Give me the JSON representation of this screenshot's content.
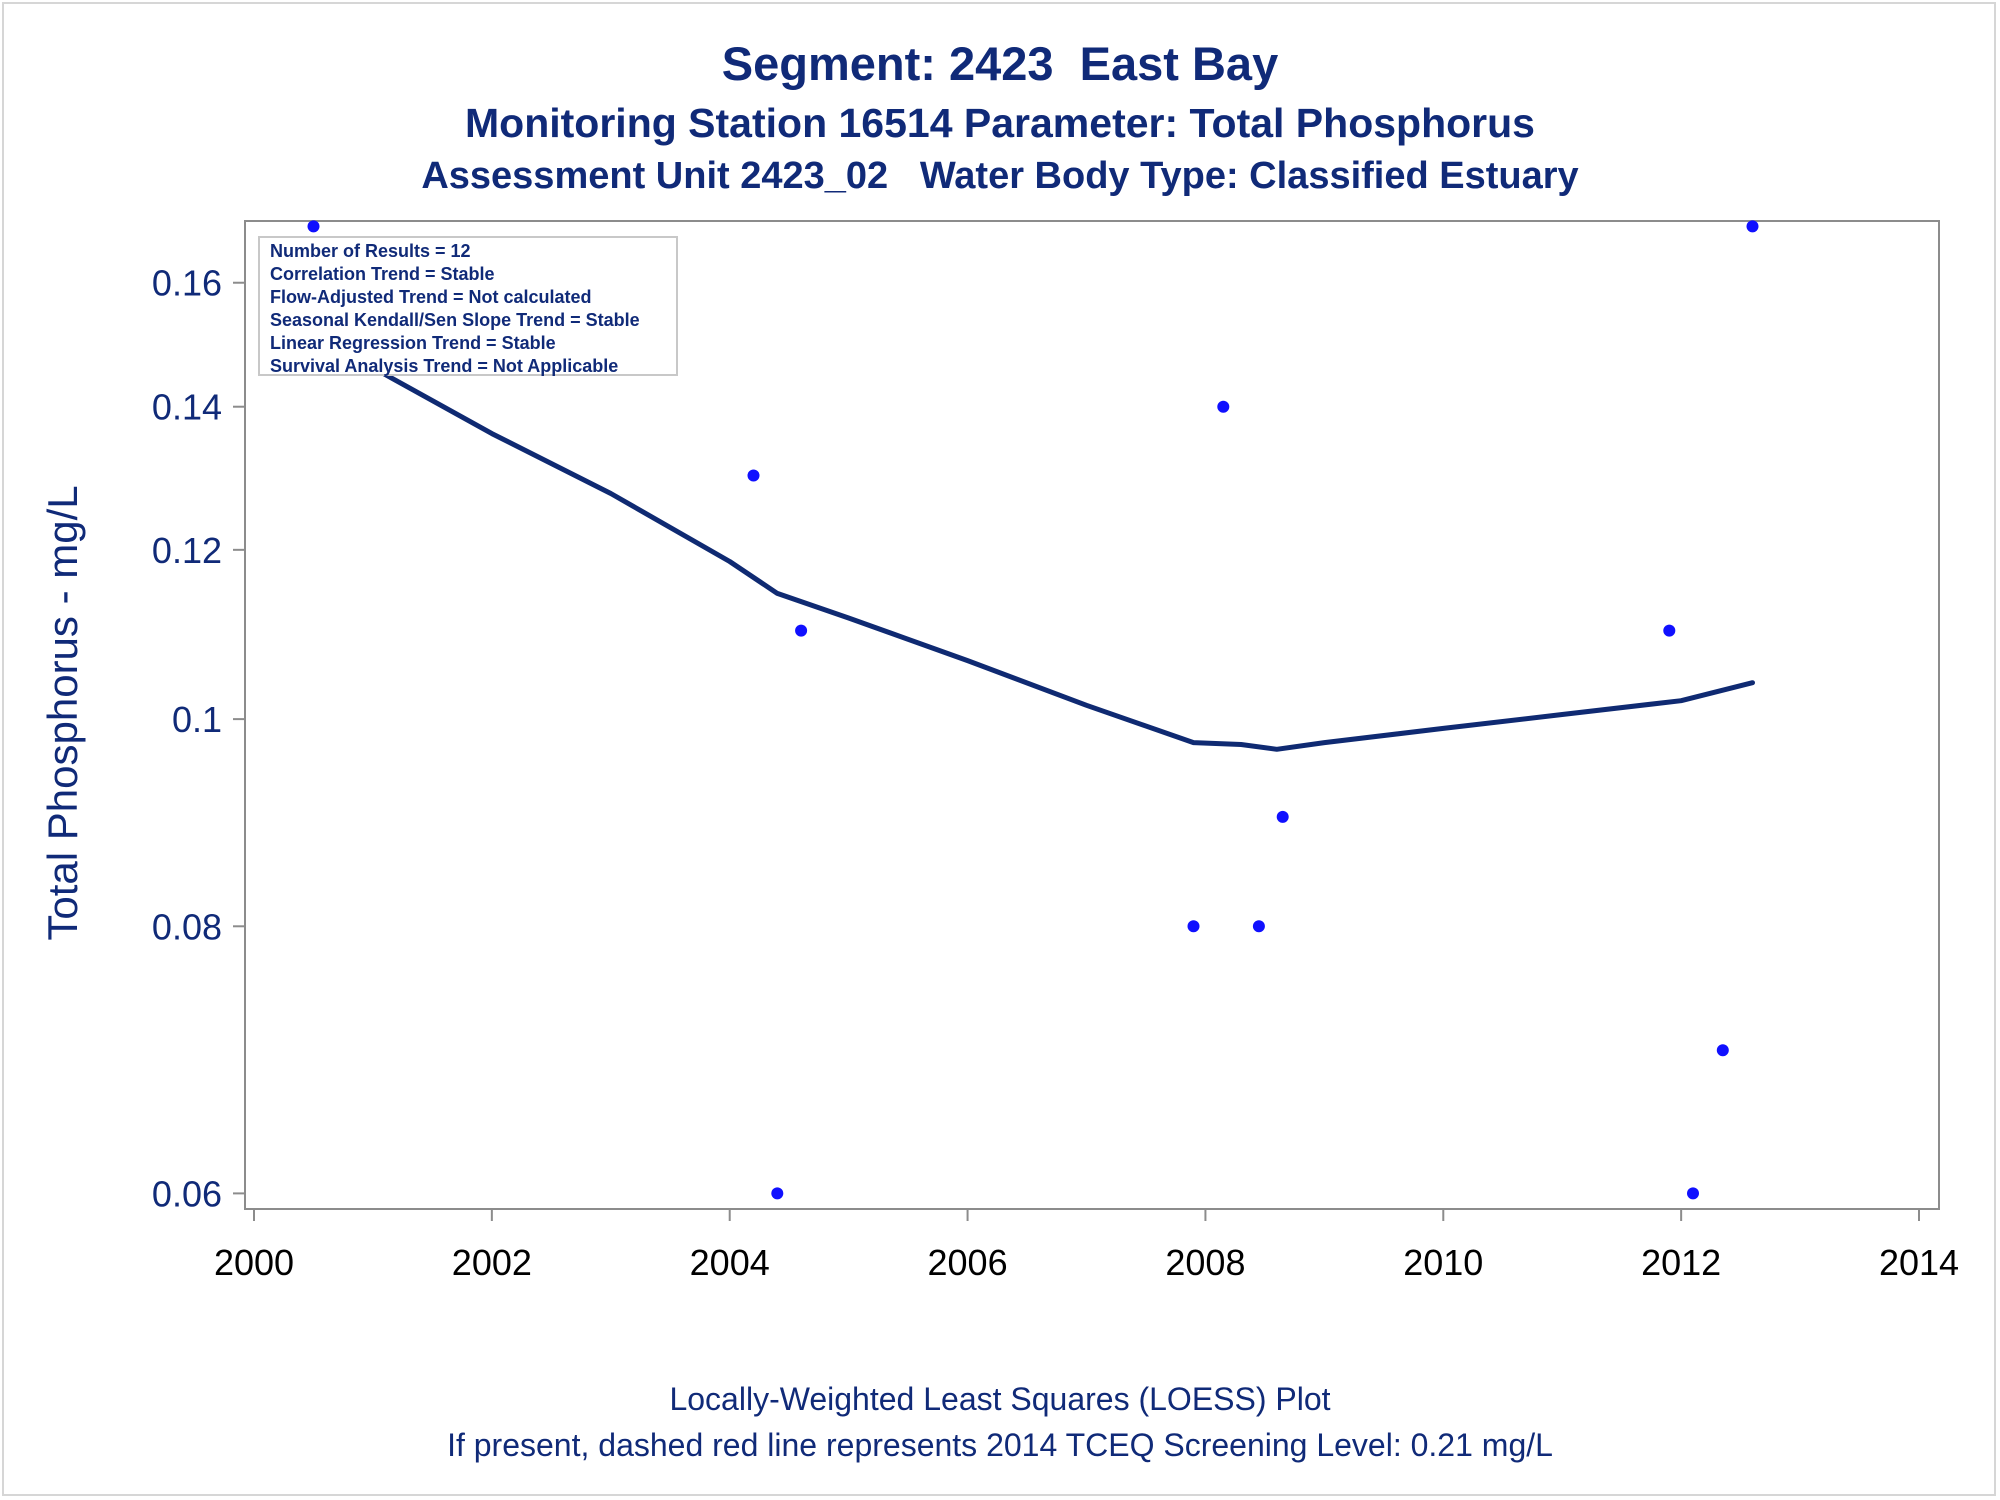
{
  "titles": {
    "line1": "Segment: 2423  East Bay",
    "line2": "Monitoring Station 16514 Parameter: Total Phosphorus",
    "line3": "Assessment Unit 2423_02   Water Body Type: Classified Estuary"
  },
  "footnotes": {
    "line1": "Locally-Weighted Least Squares (LOESS) Plot",
    "line2": "If present, dashed red line represents 2014 TCEQ Screening Level: 0.21 mg/L"
  },
  "stats_box": [
    "Number of Results = 12",
    "Correlation Trend = Stable",
    "Flow-Adjusted Trend = Not calculated",
    "Seasonal Kendall/Sen Slope Trend = Stable",
    "Linear Regression Trend = Stable",
    "Survival Analysis Trend = Not Applicable"
  ],
  "colors": {
    "text": "#102a78",
    "points": "#1010ff",
    "loess_line": "#0f2a72",
    "axis": "#8c8c8c"
  },
  "chart_data": {
    "type": "scatter",
    "title": "Segment: 2423  East Bay",
    "xlabel": "",
    "ylabel": "Total Phosphorus - mg/L",
    "y_scale": "log",
    "xlim": [
      2000,
      2014
    ],
    "ylim": [
      0.059,
      0.171
    ],
    "x_ticks": [
      2000,
      2002,
      2004,
      2006,
      2008,
      2010,
      2012,
      2014
    ],
    "x_tick_labels": [
      "2000",
      "2002",
      "2004",
      "2006",
      "2008",
      "2010",
      "2012",
      "2014"
    ],
    "y_ticks": [
      0.06,
      0.08,
      0.1,
      0.12,
      0.14,
      0.16
    ],
    "y_tick_labels": [
      "0.06",
      "0.08",
      "0.1",
      "0.12",
      "0.14",
      "0.16"
    ],
    "grid": false,
    "series": [
      {
        "type": "scatter",
        "points": [
          {
            "x": 2000.5,
            "y": 0.17
          },
          {
            "x": 2004.2,
            "y": 0.13
          },
          {
            "x": 2004.4,
            "y": 0.06
          },
          {
            "x": 2004.6,
            "y": 0.11
          },
          {
            "x": 2007.9,
            "y": 0.08
          },
          {
            "x": 2008.15,
            "y": 0.14
          },
          {
            "x": 2008.45,
            "y": 0.08
          },
          {
            "x": 2008.65,
            "y": 0.09
          },
          {
            "x": 2011.9,
            "y": 0.11
          },
          {
            "x": 2012.1,
            "y": 0.06
          },
          {
            "x": 2012.35,
            "y": 0.07
          },
          {
            "x": 2012.6,
            "y": 0.17
          }
        ]
      },
      {
        "type": "line",
        "points": [
          {
            "x": 2000.5,
            "y": 0.15
          },
          {
            "x": 2001.0,
            "y": 0.146
          },
          {
            "x": 2002.0,
            "y": 0.136
          },
          {
            "x": 2003.0,
            "y": 0.1275
          },
          {
            "x": 2004.0,
            "y": 0.1185
          },
          {
            "x": 2004.4,
            "y": 0.1145
          },
          {
            "x": 2005.0,
            "y": 0.1115
          },
          {
            "x": 2006.0,
            "y": 0.1065
          },
          {
            "x": 2007.0,
            "y": 0.1015
          },
          {
            "x": 2007.9,
            "y": 0.0975
          },
          {
            "x": 2008.3,
            "y": 0.0973
          },
          {
            "x": 2008.6,
            "y": 0.0968
          },
          {
            "x": 2009.0,
            "y": 0.0975
          },
          {
            "x": 2010.0,
            "y": 0.099
          },
          {
            "x": 2011.0,
            "y": 0.1005
          },
          {
            "x": 2012.0,
            "y": 0.102
          },
          {
            "x": 2012.6,
            "y": 0.104
          }
        ]
      }
    ]
  }
}
